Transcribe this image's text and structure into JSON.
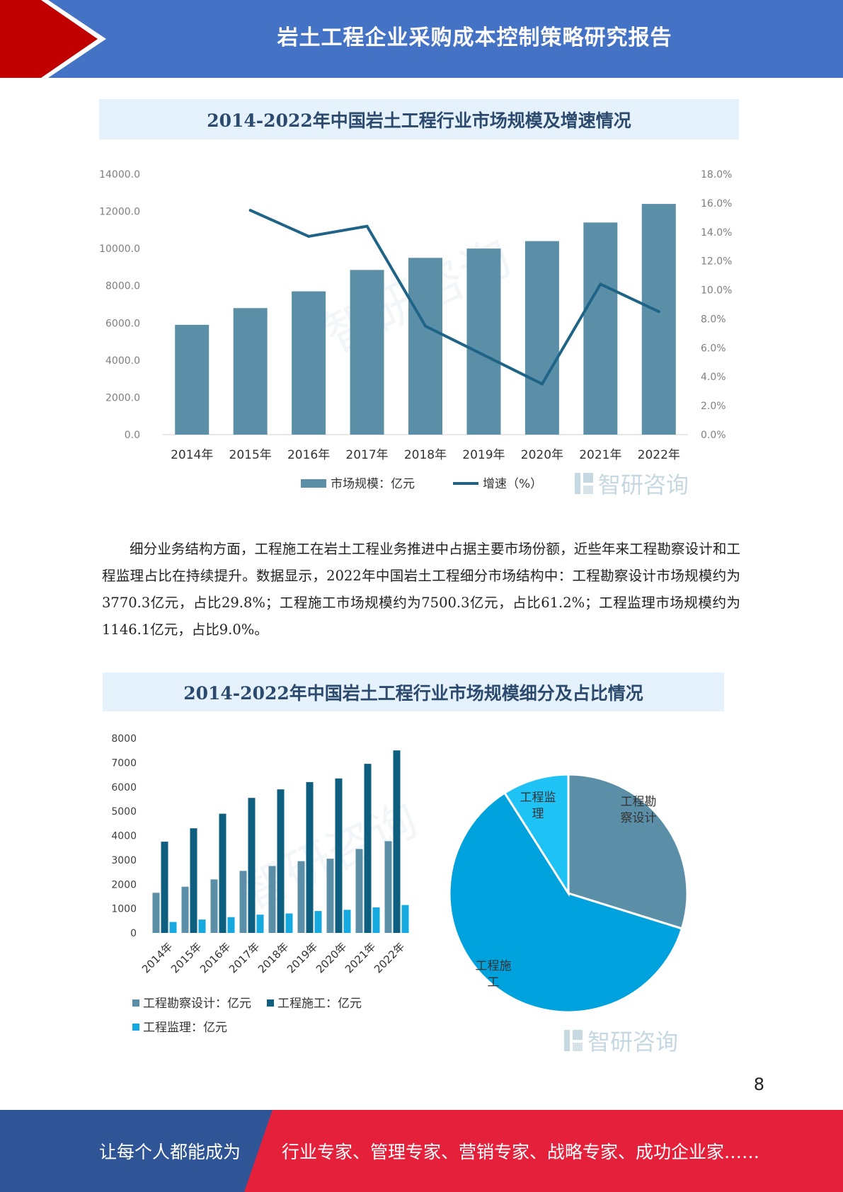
{
  "header": {
    "title": "岩土工程企业采购成本控制策略研究报告"
  },
  "chart1": {
    "title": "2014-2022年中国岩土工程行业市场规模及增速情况",
    "watermark": "智研咨询",
    "chart_data": {
      "type": "bar+line",
      "categories": [
        "2014年",
        "2015年",
        "2016年",
        "2017年",
        "2018年",
        "2019年",
        "2020年",
        "2021年",
        "2022年"
      ],
      "series": [
        {
          "name": "市场规模：亿元",
          "type": "bar",
          "axis": "left",
          "values": [
            5900,
            6800,
            7700,
            8850,
            9500,
            10000,
            10400,
            11400,
            12400
          ]
        },
        {
          "name": "增速（%）",
          "type": "line",
          "axis": "right",
          "values": [
            null,
            15.5,
            13.7,
            14.4,
            7.5,
            5.5,
            3.5,
            10.4,
            8.5
          ]
        }
      ],
      "left_axis": {
        "min": 0,
        "max": 14000,
        "ticks": [
          "0.0",
          "2000.0",
          "4000.0",
          "6000.0",
          "8000.0",
          "10000.0",
          "12000.0",
          "14000.0"
        ]
      },
      "right_axis": {
        "min": 0,
        "max": 18,
        "ticks": [
          "0.0%",
          "2.0%",
          "4.0%",
          "6.0%",
          "8.0%",
          "10.0%",
          "12.0%",
          "14.0%",
          "16.0%",
          "18.0%"
        ]
      },
      "legend_position": "bottom",
      "colors": {
        "bar": "#5b8fa8",
        "line": "#1f6487"
      }
    }
  },
  "paragraph": "细分业务结构方面，工程施工在岩土工程业务推进中占据主要市场份额，近些年来工程勘察设计和工程监理占比在持续提升。数据显示，2022年中国岩土工程细分市场结构中：工程勘察设计市场规模约为3770.3亿元，占比29.8%；工程施工市场规模约为7500.3亿元，占比61.2%；工程监理市场规模约为1146.1亿元，占比9.0%。",
  "chart2": {
    "title": "2014-2022年中国岩土工程行业市场规模细分及占比情况",
    "watermark": "智研咨询",
    "chart_data": [
      {
        "type": "bar",
        "categories": [
          "2014年",
          "2015年",
          "2016年",
          "2017年",
          "2018年",
          "2019年",
          "2020年",
          "2021年",
          "2022年"
        ],
        "series": [
          {
            "name": "工程勘察设计：亿元",
            "values": [
              1650,
              1900,
              2200,
              2550,
              2750,
              2950,
              3050,
              3450,
              3770.3
            ]
          },
          {
            "name": "工程施工：亿元",
            "values": [
              3750,
              4300,
              4900,
              5550,
              5900,
              6200,
              6350,
              6950,
              7500.3
            ]
          },
          {
            "name": "工程监理：亿元",
            "values": [
              450,
              550,
              650,
              750,
              800,
              900,
              950,
              1050,
              1146.1
            ]
          }
        ],
        "y_axis": {
          "min": 0,
          "max": 8000,
          "ticks": [
            "0",
            "1000",
            "2000",
            "3000",
            "4000",
            "5000",
            "6000",
            "7000",
            "8000"
          ]
        },
        "legend_position": "bottom",
        "colors": [
          "#5b8fa8",
          "#0e5e80",
          "#16a9e0"
        ]
      },
      {
        "type": "pie",
        "slices": [
          {
            "label": "工程勘察设计",
            "value": 29.8,
            "color": "#5b8fa8"
          },
          {
            "label": "工程施工",
            "value": 61.2,
            "color": "#00a2dd"
          },
          {
            "label": "工程监理",
            "value": 9.0,
            "color": "#1fc2f5"
          }
        ]
      }
    ]
  },
  "page_number": "8",
  "footer": {
    "left": "让每个人都能成为",
    "right": "行业专家、管理专家、营销专家、战略专家、成功企业家……"
  }
}
